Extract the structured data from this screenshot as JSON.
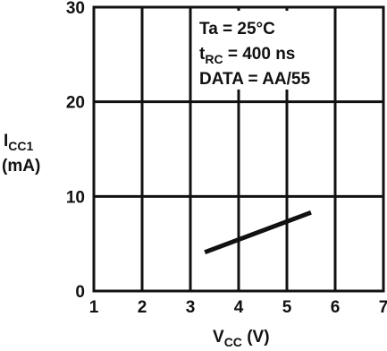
{
  "chart_data": {
    "type": "line",
    "title": "",
    "xlabel": {
      "main": "V",
      "sub": "CC",
      "unit": " (V)"
    },
    "ylabel": {
      "main": "I",
      "sub": "CC1",
      "unit": "(mA)"
    },
    "xlim": [
      1,
      7
    ],
    "ylim": [
      0,
      30
    ],
    "xticks": [
      1,
      2,
      3,
      4,
      5,
      6,
      7
    ],
    "yticks": [
      0,
      10,
      20,
      30
    ],
    "grid": true,
    "annotations": [
      {
        "main": "Ta = 25°C",
        "sub": "",
        "rest": ""
      },
      {
        "main": "t",
        "sub": "RC",
        "rest": " = 400 ns"
      },
      {
        "main": "DATA = AA/55",
        "sub": "",
        "rest": ""
      }
    ],
    "series": [
      {
        "x": [
          3.3,
          5.5
        ],
        "y": [
          4.1,
          8.3
        ]
      }
    ]
  }
}
